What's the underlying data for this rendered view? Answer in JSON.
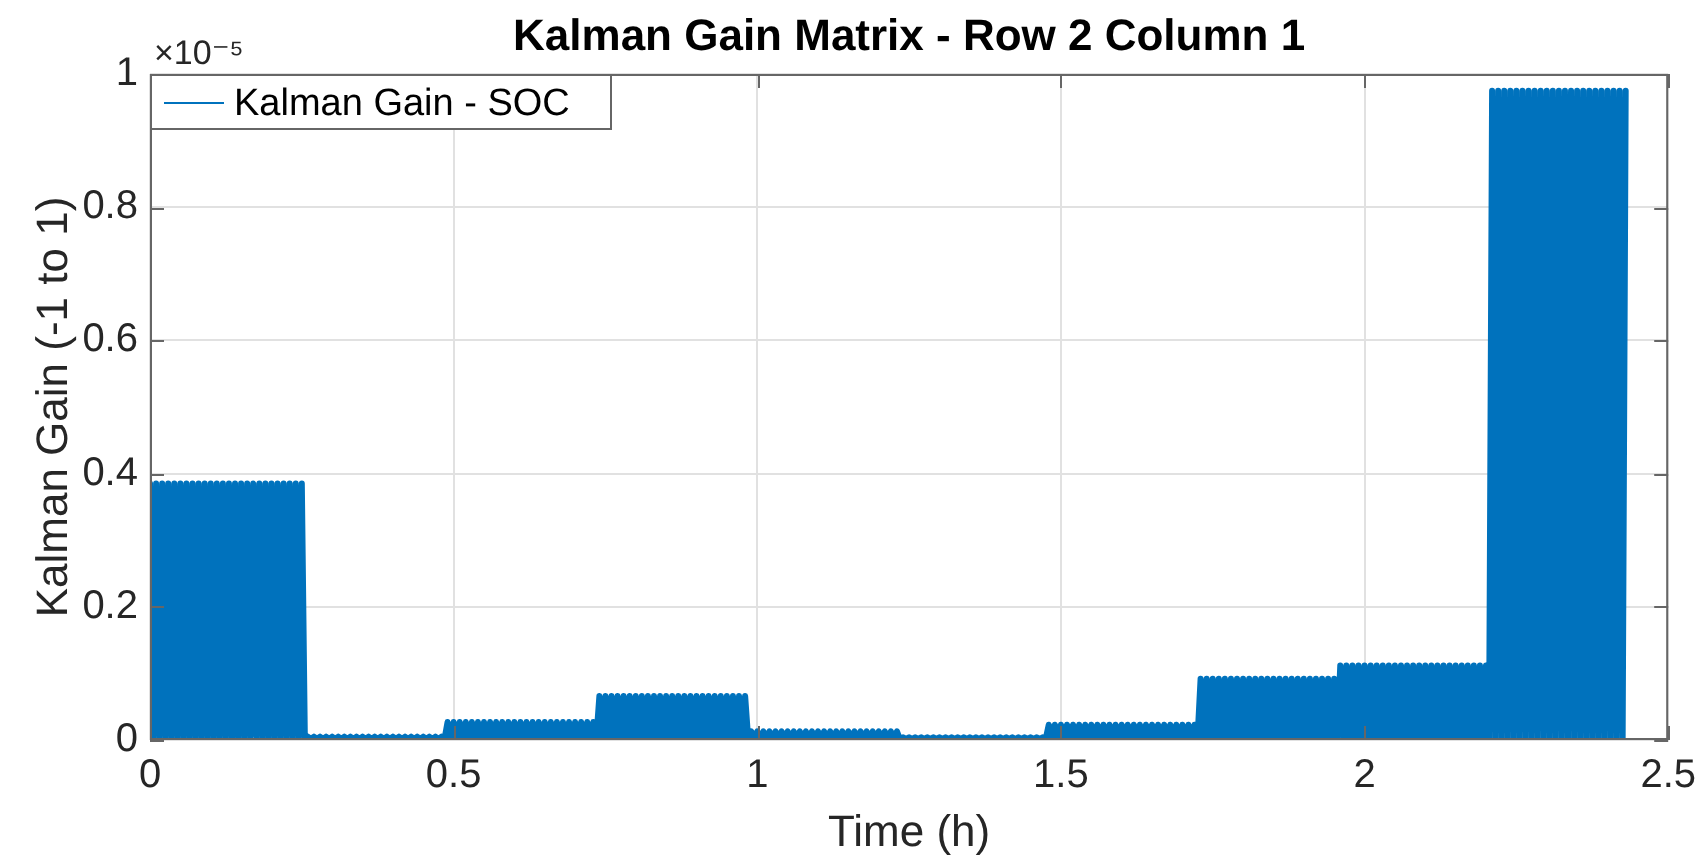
{
  "chart_data": {
    "type": "line",
    "title": "Kalman Gain Matrix - Row 2 Column 1",
    "xlabel": "Time (h)",
    "ylabel": "Kalman Gain (-1 to 1)",
    "annotations": [
      "×10⁻⁵"
    ],
    "x": [
      0,
      0.005,
      0.01,
      0.015,
      0.02,
      0.025,
      0.03,
      0.035,
      0.04,
      0.045,
      0.05,
      0.055,
      0.06,
      0.065,
      0.07,
      0.075,
      0.08,
      0.085,
      0.09,
      0.095,
      0.1,
      0.105,
      0.11,
      0.115,
      0.12,
      0.125,
      0.13,
      0.135,
      0.14,
      0.145,
      0.15,
      0.155,
      0.16,
      0.165,
      0.17,
      0.175,
      0.18,
      0.185,
      0.19,
      0.195,
      0.2,
      0.205,
      0.21,
      0.215,
      0.22,
      0.225,
      0.23,
      0.235,
      0.24,
      0.245,
      0.25,
      0.255,
      0.26,
      0.265,
      0.27,
      0.275,
      0.28,
      0.285,
      0.29,
      0.295,
      0.3,
      0.305,
      0.31,
      0.315,
      0.32,
      0.325,
      0.33,
      0.335,
      0.34,
      0.345,
      0.35,
      0.355,
      0.36,
      0.365,
      0.37,
      0.375,
      0.38,
      0.385,
      0.39,
      0.395,
      0.4,
      0.405,
      0.41,
      0.415,
      0.42,
      0.425,
      0.43,
      0.435,
      0.44,
      0.445,
      0.45,
      0.455,
      0.46,
      0.465,
      0.47,
      0.475,
      0.48,
      0.485,
      0.49,
      0.495,
      0.5,
      0.505,
      0.51,
      0.515,
      0.52,
      0.525,
      0.53,
      0.535,
      0.54,
      0.545,
      0.55,
      0.555,
      0.56,
      0.565,
      0.57,
      0.575,
      0.58,
      0.585,
      0.59,
      0.595,
      0.6,
      0.605,
      0.61,
      0.615,
      0.62,
      0.625,
      0.63,
      0.635,
      0.64,
      0.645,
      0.65,
      0.655,
      0.66,
      0.665,
      0.67,
      0.675,
      0.68,
      0.685,
      0.69,
      0.695,
      0.7,
      0.705,
      0.71,
      0.715,
      0.72,
      0.725,
      0.73,
      0.735,
      0.74,
      0.745,
      0.75,
      0.755,
      0.76,
      0.765,
      0.77,
      0.775,
      0.78,
      0.785,
      0.79,
      0.795,
      0.8,
      0.805,
      0.81,
      0.815,
      0.82,
      0.825,
      0.83,
      0.835,
      0.84,
      0.845,
      0.85,
      0.855,
      0.86,
      0.865,
      0.87,
      0.875,
      0.88,
      0.885,
      0.89,
      0.895,
      0.9,
      0.905,
      0.91,
      0.915,
      0.92,
      0.925,
      0.93,
      0.935,
      0.94,
      0.945,
      0.95,
      0.955,
      0.96,
      0.965,
      0.97,
      0.975,
      0.98,
      0.985,
      0.99,
      0.995,
      1,
      1.005,
      1.01,
      1.015,
      1.02,
      1.025,
      1.03,
      1.035,
      1.04,
      1.045,
      1.05,
      1.055,
      1.06,
      1.065,
      1.07,
      1.075,
      1.08,
      1.085,
      1.09,
      1.095,
      1.1,
      1.105,
      1.11,
      1.115,
      1.12,
      1.125,
      1.13,
      1.135,
      1.14,
      1.145,
      1.15,
      1.155,
      1.16,
      1.165,
      1.17,
      1.175,
      1.18,
      1.185,
      1.19,
      1.195,
      1.2,
      1.205,
      1.21,
      1.215,
      1.22,
      1.225,
      1.23,
      1.235,
      1.24,
      1.245,
      1.25,
      1.255,
      1.26,
      1.265,
      1.27,
      1.275,
      1.28,
      1.285,
      1.29,
      1.295,
      1.3,
      1.305,
      1.31,
      1.315,
      1.32,
      1.325,
      1.33,
      1.335,
      1.34,
      1.345,
      1.35,
      1.355,
      1.36,
      1.365,
      1.37,
      1.375,
      1.38,
      1.385,
      1.39,
      1.395,
      1.4,
      1.405,
      1.41,
      1.415,
      1.42,
      1.425,
      1.43,
      1.435,
      1.44,
      1.445,
      1.45,
      1.455,
      1.46,
      1.465,
      1.47,
      1.475,
      1.48,
      1.485,
      1.49,
      1.495,
      1.5,
      1.505,
      1.51,
      1.515,
      1.52,
      1.525,
      1.53,
      1.535,
      1.54,
      1.545,
      1.55,
      1.555,
      1.56,
      1.565,
      1.57,
      1.575,
      1.58,
      1.585,
      1.59,
      1.595,
      1.6,
      1.605,
      1.61,
      1.615,
      1.62,
      1.625,
      1.63,
      1.635,
      1.64,
      1.645,
      1.65,
      1.655,
      1.66,
      1.665,
      1.67,
      1.675,
      1.68,
      1.685,
      1.69,
      1.695,
      1.7,
      1.705,
      1.71,
      1.715,
      1.72,
      1.725,
      1.73,
      1.735,
      1.74,
      1.745,
      1.75,
      1.755,
      1.76,
      1.765,
      1.77,
      1.775,
      1.78,
      1.785,
      1.79,
      1.795,
      1.8,
      1.805,
      1.81,
      1.815,
      1.82,
      1.825,
      1.83,
      1.835,
      1.84,
      1.845,
      1.85,
      1.855,
      1.86,
      1.865,
      1.87,
      1.875,
      1.88,
      1.885,
      1.89,
      1.895,
      1.9,
      1.905,
      1.91,
      1.915,
      1.92,
      1.925,
      1.93,
      1.935,
      1.94,
      1.945,
      1.95,
      1.955,
      1.96,
      1.965,
      1.97,
      1.975,
      1.98,
      1.985,
      1.99,
      1.995,
      2,
      2.005,
      2.01,
      2.015,
      2.02,
      2.025,
      2.03,
      2.035,
      2.04,
      2.045,
      2.05,
      2.055,
      2.06,
      2.065,
      2.07,
      2.075,
      2.08,
      2.085,
      2.09,
      2.095,
      2.1,
      2.105,
      2.11,
      2.115,
      2.12,
      2.125,
      2.13,
      2.135,
      2.14,
      2.145,
      2.15,
      2.155,
      2.16,
      2.165,
      2.17,
      2.175,
      2.18,
      2.185,
      2.19,
      2.195,
      2.2,
      2.205,
      2.21,
      2.215,
      2.22,
      2.225,
      2.23,
      2.235,
      2.24,
      2.245,
      2.25,
      2.255,
      2.26,
      2.265,
      2.27,
      2.275,
      2.28,
      2.285,
      2.29,
      2.295,
      2.3,
      2.305,
      2.31,
      2.315,
      2.32,
      2.325,
      2.33,
      2.335,
      2.34,
      2.345,
      2.35,
      2.355,
      2.36,
      2.365,
      2.37,
      2.375,
      2.38,
      2.385,
      2.39,
      2.395,
      2.4,
      2.405,
      2.41,
      2.415,
      2.42,
      2.425,
      2.43
    ],
    "series": [
      {
        "name": "Kalman Gain - SOC",
        "color": "#0072bd",
        "values": [
          0.385,
          0.003,
          0.385,
          0.003,
          0.385,
          0.003,
          0.385,
          0.003,
          0.385,
          0.003,
          0.385,
          0.003,
          0.385,
          0.003,
          0.385,
          0.003,
          0.385,
          0.003,
          0.385,
          0.003,
          0.385,
          0.003,
          0.385,
          0.003,
          0.385,
          0.003,
          0.385,
          0.003,
          0.385,
          0.003,
          0.385,
          0.003,
          0.385,
          0.003,
          0.385,
          0.003,
          0.385,
          0.003,
          0.385,
          0.003,
          0.385,
          0.003,
          0.385,
          0.003,
          0.385,
          0.003,
          0.385,
          0.003,
          0.385,
          0.003,
          0.385,
          0.002,
          0.005,
          0.002,
          0.005,
          0.002,
          0.005,
          0.002,
          0.005,
          0.002,
          0.005,
          0.002,
          0.005,
          0.002,
          0.005,
          0.002,
          0.005,
          0.002,
          0.005,
          0.002,
          0.005,
          0.002,
          0.005,
          0.002,
          0.005,
          0.002,
          0.005,
          0.002,
          0.005,
          0.002,
          0.005,
          0.002,
          0.005,
          0.002,
          0.005,
          0.002,
          0.005,
          0.002,
          0.005,
          0.002,
          0.005,
          0.002,
          0.005,
          0.002,
          0.005,
          0.002,
          0.005,
          0.002,
          0.027,
          0.003,
          0.027,
          0.003,
          0.027,
          0.003,
          0.027,
          0.003,
          0.027,
          0.003,
          0.027,
          0.003,
          0.027,
          0.003,
          0.027,
          0.003,
          0.027,
          0.003,
          0.027,
          0.003,
          0.027,
          0.003,
          0.027,
          0.003,
          0.027,
          0.003,
          0.027,
          0.003,
          0.027,
          0.003,
          0.027,
          0.003,
          0.027,
          0.003,
          0.027,
          0.003,
          0.027,
          0.003,
          0.027,
          0.003,
          0.027,
          0.003,
          0.027,
          0.003,
          0.027,
          0.003,
          0.027,
          0.003,
          0.027,
          0.003,
          0.066,
          0.003,
          0.066,
          0.003,
          0.066,
          0.003,
          0.066,
          0.003,
          0.066,
          0.003,
          0.066,
          0.003,
          0.066,
          0.003,
          0.066,
          0.003,
          0.066,
          0.003,
          0.066,
          0.003,
          0.066,
          0.003,
          0.066,
          0.003,
          0.066,
          0.003,
          0.066,
          0.003,
          0.066,
          0.003,
          0.066,
          0.003,
          0.066,
          0.003,
          0.066,
          0.003,
          0.066,
          0.003,
          0.066,
          0.003,
          0.066,
          0.003,
          0.066,
          0.003,
          0.066,
          0.003,
          0.066,
          0.003,
          0.066,
          0.002,
          0.013,
          0.002,
          0.013,
          0.002,
          0.013,
          0.002,
          0.013,
          0.002,
          0.013,
          0.002,
          0.013,
          0.002,
          0.013,
          0.002,
          0.013,
          0.002,
          0.013,
          0.002,
          0.013,
          0.002,
          0.013,
          0.002,
          0.013,
          0.002,
          0.013,
          0.002,
          0.013,
          0.002,
          0.013,
          0.002,
          0.013,
          0.002,
          0.013,
          0.002,
          0.013,
          0.002,
          0.013,
          0.002,
          0.013,
          0.002,
          0.013,
          0.002,
          0.013,
          0.002,
          0.013,
          0.002,
          0.013,
          0.002,
          0.013,
          0.001,
          0.004,
          0.001,
          0.004,
          0.001,
          0.004,
          0.001,
          0.004,
          0.001,
          0.004,
          0.001,
          0.004,
          0.001,
          0.004,
          0.001,
          0.004,
          0.001,
          0.004,
          0.001,
          0.004,
          0.001,
          0.004,
          0.001,
          0.004,
          0.001,
          0.004,
          0.001,
          0.004,
          0.001,
          0.004,
          0.001,
          0.004,
          0.001,
          0.004,
          0.001,
          0.004,
          0.001,
          0.004,
          0.001,
          0.004,
          0.001,
          0.004,
          0.001,
          0.004,
          0.001,
          0.004,
          0.001,
          0.004,
          0.002,
          0.023,
          0.002,
          0.023,
          0.002,
          0.023,
          0.002,
          0.023,
          0.002,
          0.023,
          0.002,
          0.023,
          0.002,
          0.023,
          0.002,
          0.023,
          0.002,
          0.023,
          0.002,
          0.023,
          0.002,
          0.023,
          0.002,
          0.023,
          0.002,
          0.023,
          0.002,
          0.023,
          0.002,
          0.023,
          0.002,
          0.023,
          0.002,
          0.023,
          0.002,
          0.023,
          0.002,
          0.023,
          0.002,
          0.023,
          0.002,
          0.023,
          0.002,
          0.023,
          0.002,
          0.023,
          0.002,
          0.023,
          0.002,
          0.023,
          0.003,
          0.092,
          0.003,
          0.092,
          0.003,
          0.092,
          0.003,
          0.092,
          0.003,
          0.092,
          0.003,
          0.092,
          0.003,
          0.092,
          0.003,
          0.092,
          0.003,
          0.092,
          0.003,
          0.092,
          0.003,
          0.092,
          0.003,
          0.092,
          0.003,
          0.092,
          0.003,
          0.092,
          0.003,
          0.092,
          0.003,
          0.092,
          0.003,
          0.092,
          0.003,
          0.092,
          0.003,
          0.092,
          0.003,
          0.092,
          0.003,
          0.092,
          0.003,
          0.092,
          0.003,
          0.092,
          0.003,
          0.112,
          0.003,
          0.112,
          0.003,
          0.112,
          0.003,
          0.112,
          0.003,
          0.112,
          0.003,
          0.112,
          0.003,
          0.112,
          0.003,
          0.112,
          0.003,
          0.112,
          0.003,
          0.112,
          0.003,
          0.112,
          0.003,
          0.112,
          0.003,
          0.112,
          0.003,
          0.112,
          0.003,
          0.112,
          0.003,
          0.112,
          0.003,
          0.112,
          0.003,
          0.112,
          0.003,
          0.112,
          0.003,
          0.112,
          0.003,
          0.112,
          0.003,
          0.112,
          0.003,
          0.112,
          0.003,
          0.112,
          0.003,
          0.112,
          0.003,
          0.975,
          0.003,
          0.975,
          0.003,
          0.975,
          0.003,
          0.975,
          0.003,
          0.975,
          0.003,
          0.975,
          0.003,
          0.975,
          0.003,
          0.975,
          0.003,
          0.975,
          0.003,
          0.975,
          0.003,
          0.975,
          0.003,
          0.975,
          0.003,
          0.975,
          0.003,
          0.975,
          0.003,
          0.975,
          0.003,
          0.975,
          0.003,
          0.975,
          0.003,
          0.975,
          0.003,
          0.975,
          0.003,
          0.975,
          0.003,
          0.975,
          0.003,
          0.975,
          0.003,
          0.975
        ]
      }
    ],
    "xlim": [
      0,
      2.5
    ],
    "xticks": [
      0,
      0.5,
      1,
      1.5,
      2,
      2.5
    ],
    "ylim": [
      0,
      1
    ],
    "yticks": [
      0,
      0.2,
      0.4,
      0.6,
      0.8,
      1
    ],
    "grid": true,
    "legend": "top left"
  }
}
